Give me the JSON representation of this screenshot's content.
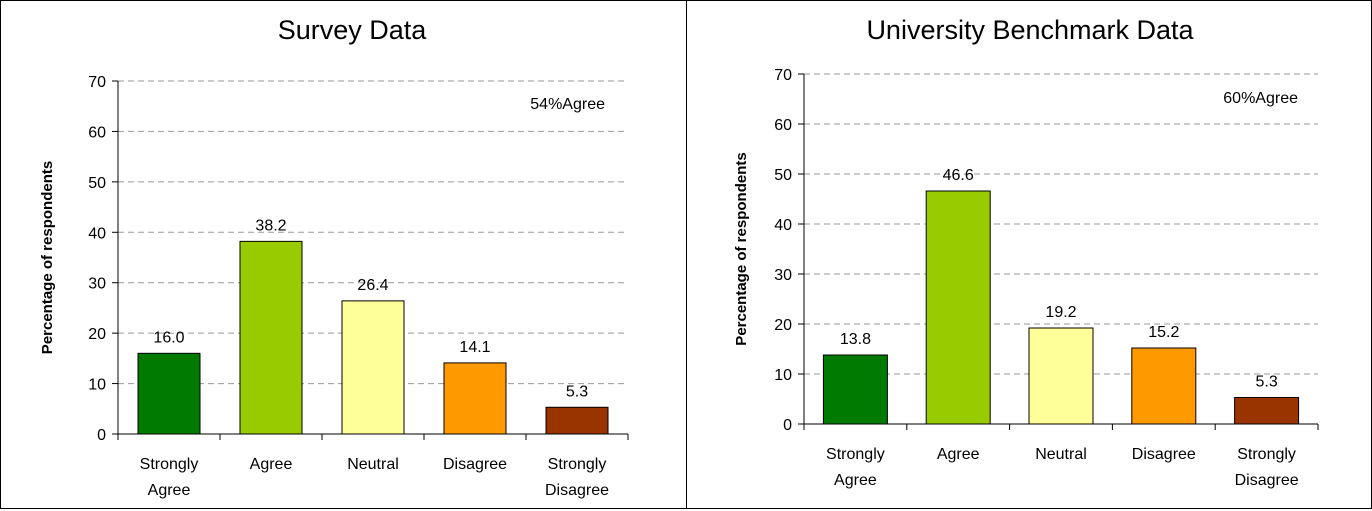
{
  "chart_data": [
    {
      "type": "bar",
      "title": "Survey Data",
      "ylabel": "Percentage of respondents",
      "xlabel": "",
      "ylim": [
        0,
        70
      ],
      "yticks": [
        0,
        10,
        20,
        30,
        40,
        50,
        60,
        70
      ],
      "grid": true,
      "categories": [
        [
          "Strongly",
          "Agree"
        ],
        [
          "Agree"
        ],
        [
          "Neutral"
        ],
        [
          "Disagree"
        ],
        [
          "Strongly",
          "Disagree"
        ]
      ],
      "values": [
        16.0,
        38.2,
        26.4,
        14.1,
        5.3
      ],
      "data_labels": [
        "16.0",
        "38.2",
        "26.4",
        "14.1",
        "5.3"
      ],
      "colors": [
        "#007A00",
        "#99CC00",
        "#FFFF99",
        "#FF9900",
        "#993300"
      ],
      "annotation": "54%Agree"
    },
    {
      "type": "bar",
      "title": "University Benchmark Data",
      "ylabel": "Percentage of respondents",
      "xlabel": "",
      "ylim": [
        0,
        70
      ],
      "yticks": [
        0,
        10,
        20,
        30,
        40,
        50,
        60,
        70
      ],
      "grid": true,
      "categories": [
        [
          "Strongly",
          "Agree"
        ],
        [
          "Agree"
        ],
        [
          "Neutral"
        ],
        [
          "Disagree"
        ],
        [
          "Strongly",
          "Disagree"
        ]
      ],
      "values": [
        13.8,
        46.6,
        19.2,
        15.2,
        5.3
      ],
      "data_labels": [
        "13.8",
        "46.6",
        "19.2",
        "15.2",
        "5.3"
      ],
      "colors": [
        "#007A00",
        "#99CC00",
        "#FFFF99",
        "#FF9900",
        "#993300"
      ],
      "annotation": "60%Agree"
    }
  ]
}
